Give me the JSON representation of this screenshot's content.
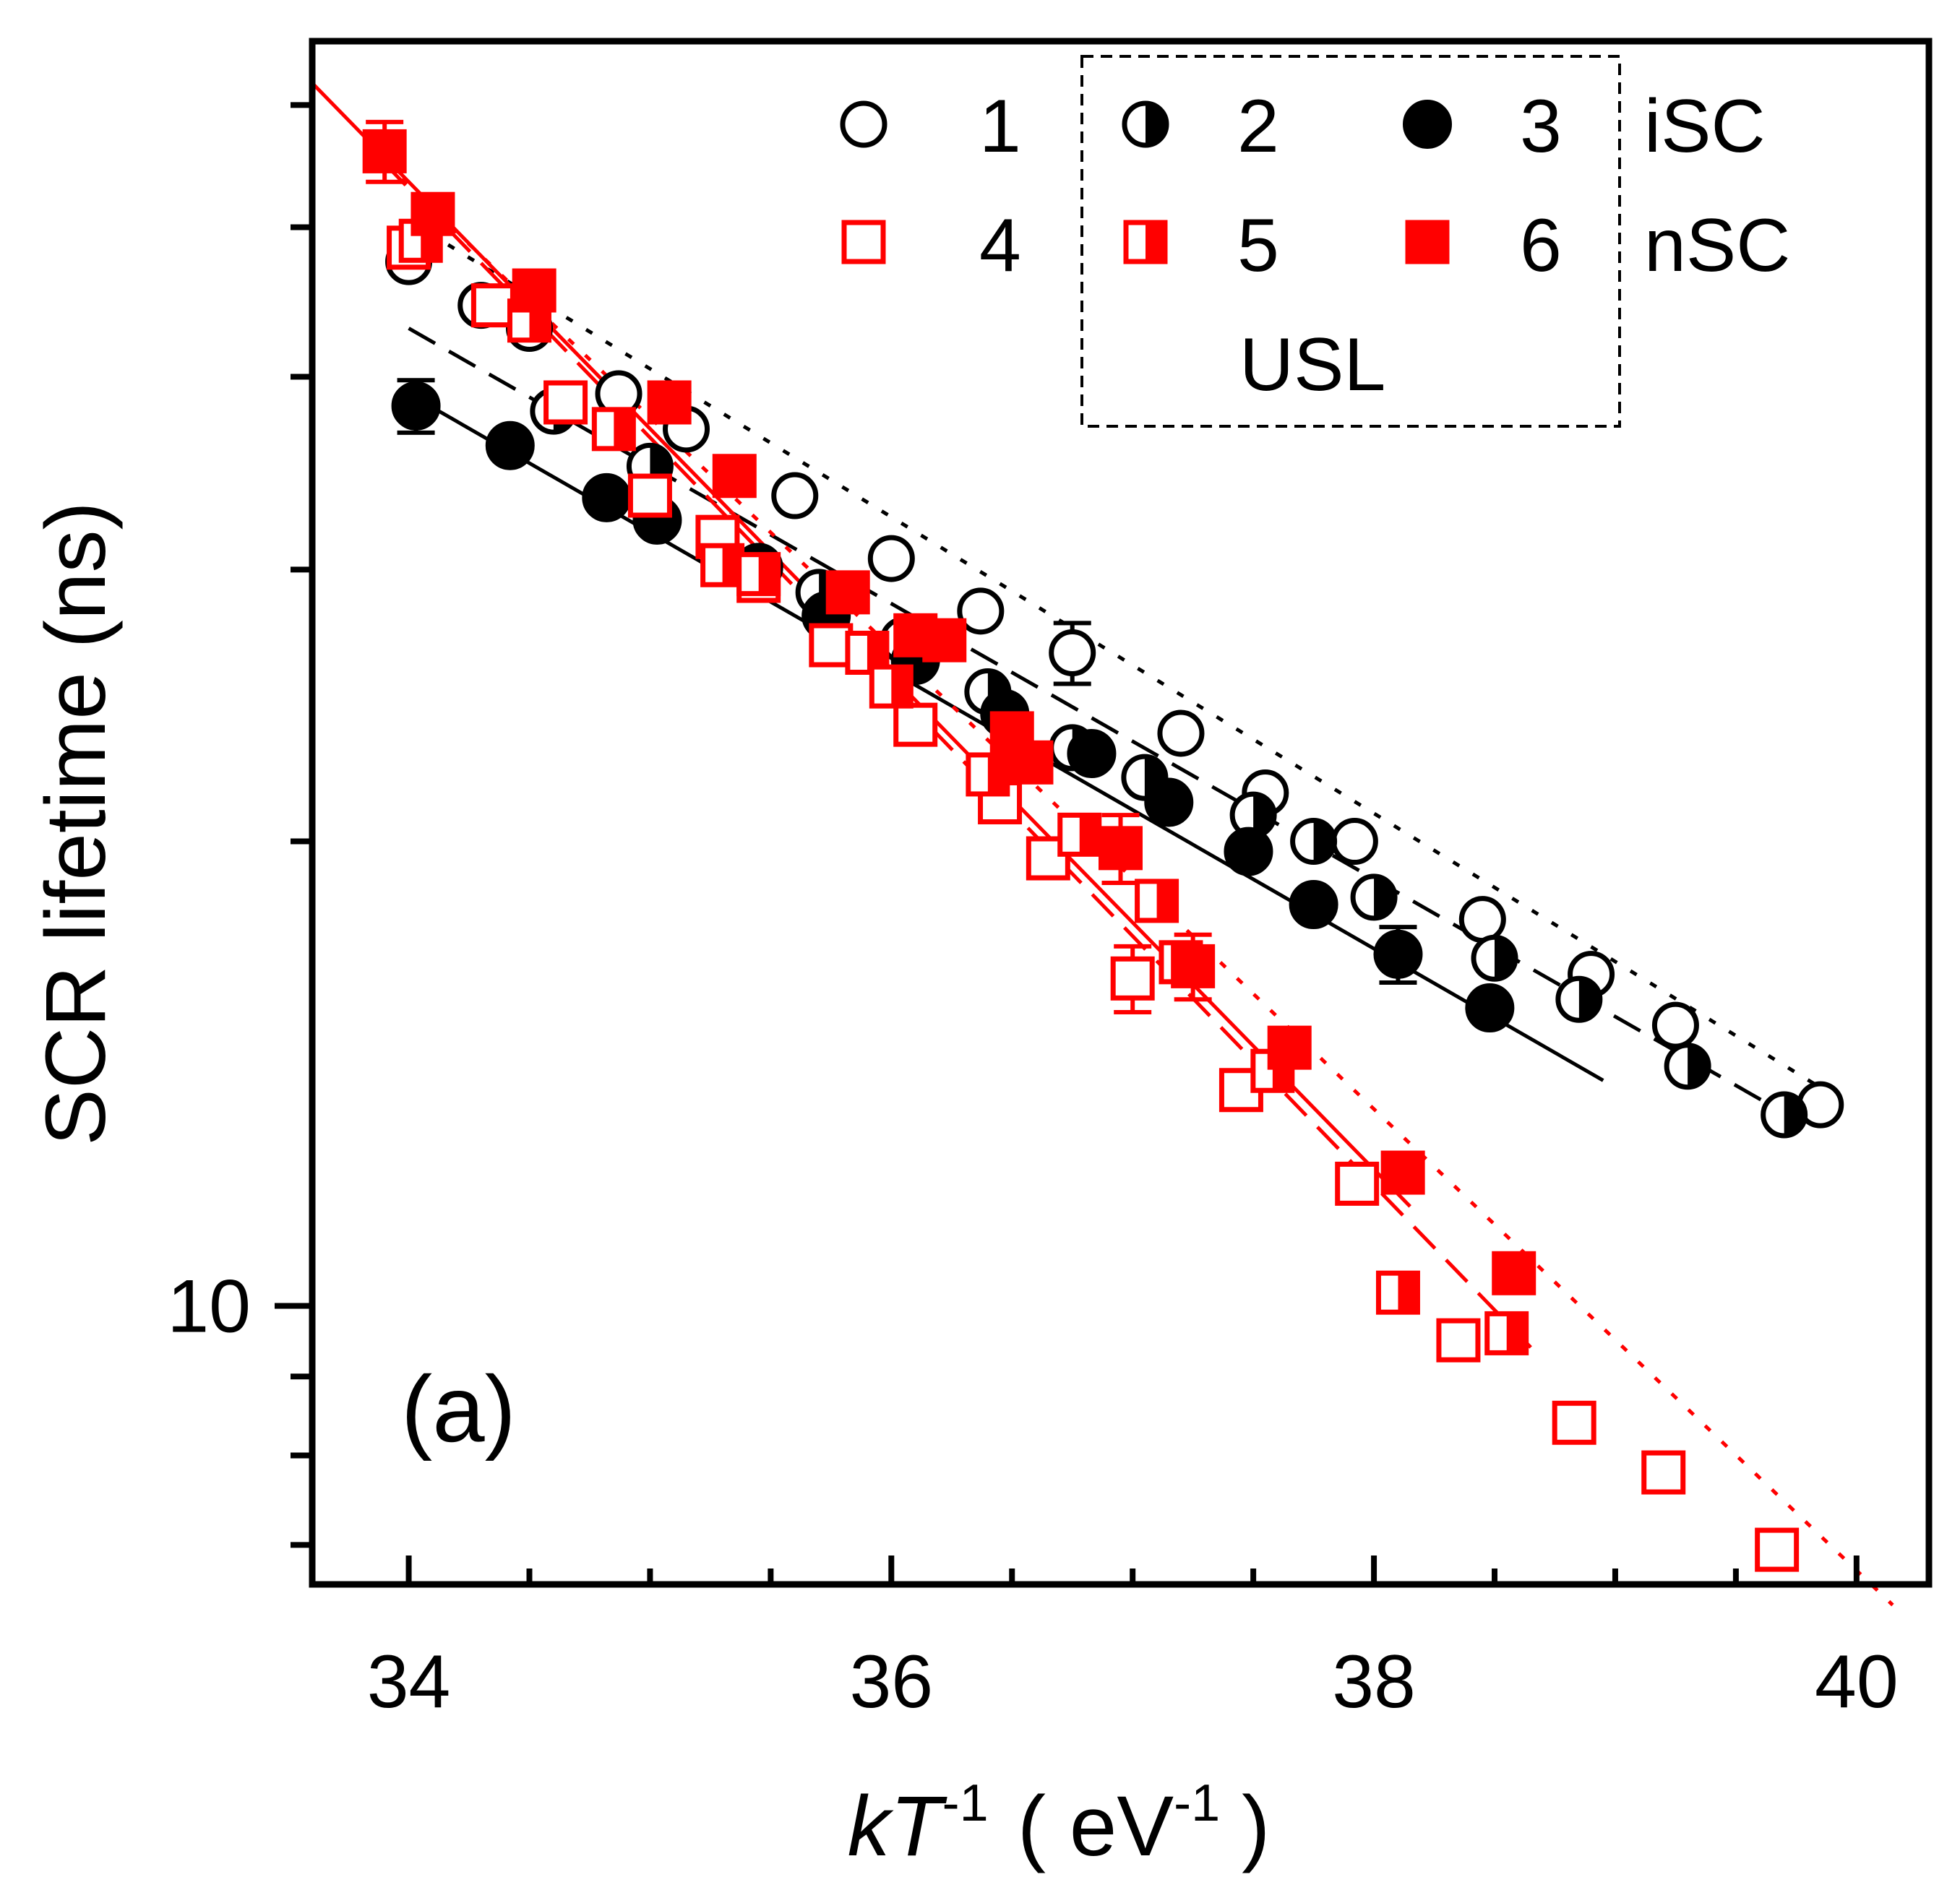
{
  "chart_data": {
    "type": "scatter",
    "panel_label": "(a)",
    "xlabel": {
      "main": "kT",
      "exp": "-1",
      "unit_open": "( eV",
      "unit_exp": "-1",
      "unit_close": ")"
    },
    "ylabel": "SCR lifetime (ns)",
    "xlim": [
      33.6,
      40.3
    ],
    "ylim": [
      6.6,
      66
    ],
    "y_scale": "log",
    "x_ticks": [
      34,
      36,
      38,
      40
    ],
    "x_tick_labels": [
      "34",
      "36",
      "38",
      "40"
    ],
    "y_tick_labels": [
      {
        "value": 10,
        "label": "10"
      }
    ],
    "grid": false,
    "legend": {
      "placement": "top-right",
      "group_labels": [
        "iSC",
        "nSC"
      ],
      "box_label": "USL",
      "entries": [
        "1",
        "2",
        "3",
        "4",
        "5",
        "6"
      ]
    },
    "colors": {
      "black_series": "#000000",
      "red_series": "#ff0000"
    },
    "series": [
      {
        "name": "1",
        "marker": "circle-open",
        "color": "#000000",
        "fit_line": "dotted",
        "x": [
          34.0,
          34.3,
          34.5,
          34.87,
          35.15,
          35.6,
          36.0,
          36.37,
          36.75,
          37.2,
          37.55,
          37.92,
          38.45,
          38.9,
          39.25,
          39.85
        ],
        "y": [
          47.5,
          44.5,
          43.0,
          39.0,
          37.0,
          33.5,
          30.5,
          28.2,
          26.5,
          23.5,
          21.5,
          20.0,
          17.8,
          16.4,
          15.2,
          13.5
        ],
        "err": [
          0,
          0,
          0,
          0,
          0,
          0,
          0,
          0,
          1.2,
          0,
          0,
          0,
          0,
          0,
          0,
          0
        ]
      },
      {
        "name": "2",
        "marker": "circle-half",
        "color": "#000000",
        "fit_line": "dashed",
        "x": [
          34.6,
          35.0,
          35.7,
          36.05,
          36.4,
          36.75,
          37.05,
          37.5,
          37.75,
          38.0,
          38.5,
          38.85,
          39.3,
          39.7
        ],
        "y": [
          38.0,
          35.0,
          29.0,
          27.0,
          25.0,
          23.0,
          22.0,
          20.8,
          20.0,
          18.4,
          16.8,
          15.8,
          14.3,
          13.3
        ],
        "err": [
          0,
          0,
          0,
          0,
          0,
          0,
          0,
          0,
          0,
          0,
          0,
          0,
          0,
          0
        ]
      },
      {
        "name": "3",
        "marker": "circle-filled",
        "color": "#000000",
        "fit_line": "solid",
        "x": [
          34.03,
          34.42,
          34.82,
          35.03,
          35.45,
          35.73,
          36.1,
          36.47,
          36.83,
          37.15,
          37.48,
          37.75,
          38.1,
          38.48
        ],
        "y": [
          38.3,
          36.1,
          33.4,
          32.3,
          30.1,
          28.0,
          26.2,
          24.2,
          22.8,
          21.2,
          19.7,
          18.2,
          16.9,
          15.6
        ],
        "err": [
          1.5,
          0,
          0,
          0,
          0,
          0,
          0,
          0,
          0,
          0,
          0,
          0,
          0.7,
          0
        ]
      },
      {
        "name": "4",
        "marker": "square-open",
        "color": "#ff0000",
        "fit_line": "dotted",
        "x": [
          34.0,
          34.35,
          34.65,
          35.0,
          35.28,
          35.45,
          35.75,
          36.1,
          36.45,
          36.65,
          37.0,
          37.45,
          37.93,
          38.35,
          38.83,
          39.2,
          39.67
        ],
        "y": [
          48.5,
          44.5,
          38.5,
          33.5,
          31.5,
          29.5,
          26.8,
          23.8,
          21.2,
          19.5,
          16.3,
          13.8,
          12.0,
          9.5,
          8.4,
          7.8,
          6.95
        ],
        "err": [
          0,
          0,
          0,
          0,
          0,
          0,
          0,
          0,
          0,
          0,
          0.8,
          0,
          0,
          0,
          0,
          0,
          0
        ]
      },
      {
        "name": "5",
        "marker": "square-half",
        "color": "#ff0000",
        "fit_line": "dashed",
        "x": [
          34.05,
          34.5,
          34.85,
          35.3,
          35.45,
          35.9,
          36.0,
          36.4,
          36.78,
          37.1,
          37.2,
          37.58,
          38.1,
          38.55
        ],
        "y": [
          49.0,
          43.5,
          37.0,
          30.2,
          29.8,
          26.5,
          25.2,
          22.1,
          20.2,
          18.3,
          16.7,
          14.2,
          10.2,
          9.6
        ],
        "err": [
          0,
          0,
          0,
          0,
          0,
          0,
          0,
          0,
          0,
          0,
          0,
          0,
          0,
          0
        ]
      },
      {
        "name": "6",
        "marker": "square-filled",
        "color": "#ff0000",
        "fit_line": "solid",
        "x": [
          33.9,
          34.1,
          34.52,
          35.08,
          35.35,
          35.82,
          36.1,
          36.22,
          36.5,
          36.58,
          36.95,
          37.25,
          37.65,
          38.12,
          38.58
        ],
        "y": [
          56.0,
          51.0,
          45.5,
          38.5,
          34.5,
          29.0,
          27.2,
          27.0,
          23.5,
          22.5,
          19.8,
          16.6,
          14.7,
          12.2,
          10.5
        ],
        "err": [
          2.5,
          0,
          0,
          0,
          0,
          0,
          0,
          0,
          0,
          0,
          1.0,
          0.8,
          0,
          0,
          0
        ]
      }
    ],
    "fits": [
      {
        "series": "1",
        "style": "dotted",
        "color": "#000000",
        "x": [
          34.0,
          39.9
        ],
        "y": [
          50.5,
          13.7
        ]
      },
      {
        "series": "2",
        "style": "dashed",
        "color": "#000000",
        "x": [
          34.0,
          39.75
        ],
        "y": [
          43.0,
          13.2
        ]
      },
      {
        "series": "3",
        "style": "solid",
        "color": "#000000",
        "x": [
          34.0,
          38.95
        ],
        "y": [
          39.0,
          14.0
        ]
      },
      {
        "series": "4",
        "style": "dotted",
        "color": "#ff0000",
        "x": [
          33.9,
          40.15
        ],
        "y": [
          55.0,
          6.4
        ]
      },
      {
        "series": "5",
        "style": "dashed",
        "color": "#ff0000",
        "x": [
          33.9,
          38.65
        ],
        "y": [
          55.0,
          9.4
        ]
      },
      {
        "series": "6",
        "style": "solid",
        "color": "#ff0000",
        "x": [
          33.6,
          38.15
        ],
        "y": [
          62.0,
          11.6
        ]
      }
    ]
  }
}
